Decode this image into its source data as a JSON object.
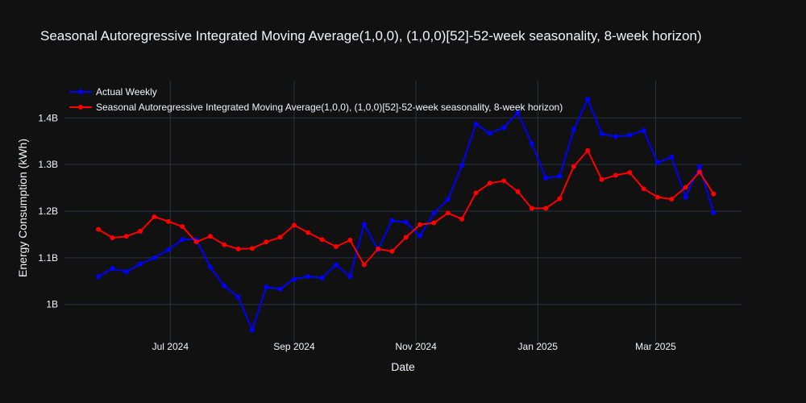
{
  "chart_data": {
    "type": "line",
    "title": "Seasonal Autoregressive Integrated Moving Average(1,0,0), (1,0,0)[52]-52-week seasonality, 8-week horizon)",
    "xlabel": "Date",
    "ylabel": "Energy Consumption (kWh)",
    "x_ticks": [
      "Jul 2024",
      "Sep 2024",
      "Nov 2024",
      "Jan 2025",
      "Mar 2025"
    ],
    "y_ticks": [
      "1B",
      "1.1B",
      "1.2B",
      "1.3B",
      "1.4B"
    ],
    "ylim": [
      920000000,
      1480000000
    ],
    "xlim": [
      "2024-05-09",
      "2025-04-13"
    ],
    "grid": true,
    "legend_position": "top-left",
    "series": [
      {
        "name": "Actual Weekly",
        "color": "#0000ff",
        "x": [
          "2024-05-26",
          "2024-06-02",
          "2024-06-09",
          "2024-06-16",
          "2024-06-23",
          "2024-06-30",
          "2024-07-07",
          "2024-07-14",
          "2024-07-21",
          "2024-07-28",
          "2024-08-04",
          "2024-08-11",
          "2024-08-18",
          "2024-08-25",
          "2024-09-01",
          "2024-09-08",
          "2024-09-15",
          "2024-09-22",
          "2024-09-29",
          "2024-10-06",
          "2024-10-13",
          "2024-10-20",
          "2024-10-27",
          "2024-11-03",
          "2024-11-10",
          "2024-11-17",
          "2024-11-24",
          "2024-12-01",
          "2024-12-08",
          "2024-12-15",
          "2024-12-22",
          "2024-12-29",
          "2025-01-05",
          "2025-01-12",
          "2025-01-19",
          "2025-01-26",
          "2025-02-02",
          "2025-02-09",
          "2025-02-16",
          "2025-02-23",
          "2025-03-02",
          "2025-03-09",
          "2025-03-16",
          "2025-03-23",
          "2025-03-30"
        ],
        "y": [
          1060000000,
          1077000000,
          1070000000,
          1087000000,
          1100000000,
          1117000000,
          1139000000,
          1139000000,
          1080000000,
          1040000000,
          1016000000,
          945000000,
          1037000000,
          1033000000,
          1054000000,
          1060000000,
          1057000000,
          1085000000,
          1060000000,
          1172000000,
          1117000000,
          1180000000,
          1176000000,
          1147000000,
          1196000000,
          1225000000,
          1298000000,
          1387000000,
          1367000000,
          1379000000,
          1411000000,
          1345000000,
          1271000000,
          1275000000,
          1375000000,
          1440000000,
          1366000000,
          1360000000,
          1363000000,
          1373000000,
          1304000000,
          1316000000,
          1230000000,
          1296000000,
          1197000000
        ]
      },
      {
        "name": "Seasonal Autoregressive Integrated Moving Average(1,0,0), (1,0,0)[52]-52-week seasonality, 8-week horizon)",
        "color": "#ff0000",
        "x": [
          "2024-05-26",
          "2024-06-02",
          "2024-06-09",
          "2024-06-16",
          "2024-06-23",
          "2024-06-30",
          "2024-07-07",
          "2024-07-14",
          "2024-07-21",
          "2024-07-28",
          "2024-08-04",
          "2024-08-11",
          "2024-08-18",
          "2024-08-25",
          "2024-09-01",
          "2024-09-08",
          "2024-09-15",
          "2024-09-22",
          "2024-09-29",
          "2024-10-06",
          "2024-10-13",
          "2024-10-20",
          "2024-10-27",
          "2024-11-03",
          "2024-11-10",
          "2024-11-17",
          "2024-11-24",
          "2024-12-01",
          "2024-12-08",
          "2024-12-15",
          "2024-12-22",
          "2024-12-29",
          "2025-01-05",
          "2025-01-12",
          "2025-01-19",
          "2025-01-26",
          "2025-02-02",
          "2025-02-09",
          "2025-02-16",
          "2025-02-23",
          "2025-03-02",
          "2025-03-09",
          "2025-03-16",
          "2025-03-23",
          "2025-03-30"
        ],
        "y": [
          1161000000,
          1143000000,
          1146000000,
          1157000000,
          1188000000,
          1178000000,
          1167000000,
          1134000000,
          1146000000,
          1128000000,
          1119000000,
          1120000000,
          1134000000,
          1144000000,
          1170000000,
          1154000000,
          1139000000,
          1124000000,
          1138000000,
          1085000000,
          1119000000,
          1114000000,
          1144000000,
          1171000000,
          1175000000,
          1196000000,
          1183000000,
          1239000000,
          1260000000,
          1265000000,
          1242000000,
          1206000000,
          1206000000,
          1227000000,
          1296000000,
          1330000000,
          1268000000,
          1277000000,
          1283000000,
          1248000000,
          1230000000,
          1226000000,
          1251000000,
          1284000000,
          1237000000
        ]
      }
    ]
  }
}
